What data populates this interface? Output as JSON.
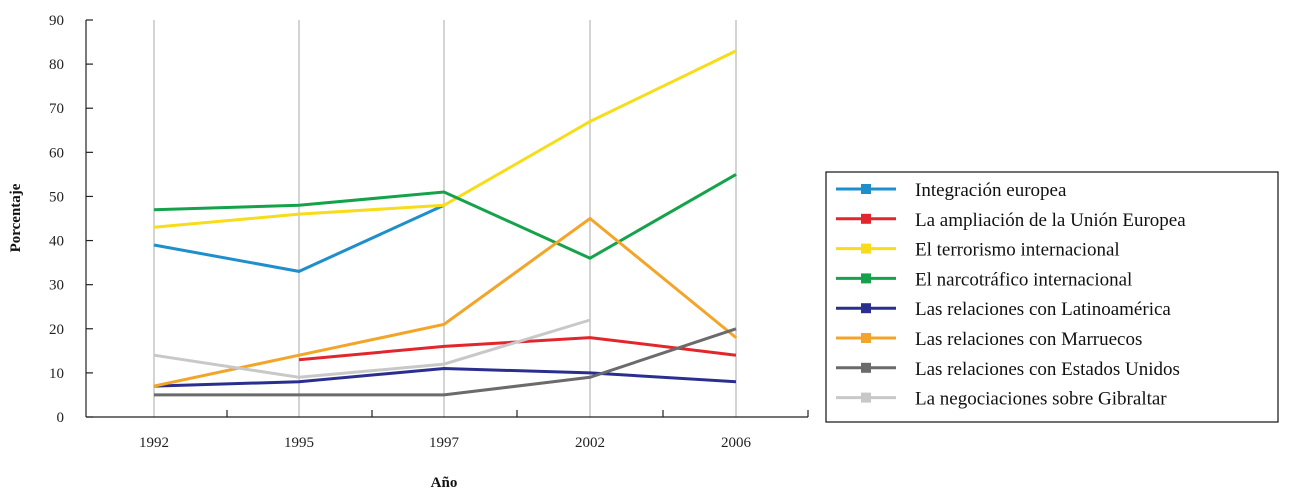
{
  "chart_data": {
    "type": "line",
    "title": "",
    "xlabel": "Año",
    "ylabel": "Porcentaje",
    "x": [
      "1992",
      "1995",
      "1997",
      "2002",
      "2006"
    ],
    "ylim": [
      0,
      90
    ],
    "yticks": [
      0,
      10,
      20,
      30,
      40,
      50,
      60,
      70,
      80,
      90
    ],
    "grid": "vertical",
    "legend_position": "right",
    "series": [
      {
        "name": "Integración europea",
        "color": "#1f8fcc",
        "values": [
          39,
          33,
          48,
          null,
          null
        ]
      },
      {
        "name": "La ampliación de la Unión Europea",
        "color": "#e3262b",
        "values": [
          null,
          13,
          16,
          18,
          14
        ]
      },
      {
        "name": "El terrorismo internacional",
        "color": "#f7dc1a",
        "values": [
          43,
          46,
          48,
          67,
          83
        ]
      },
      {
        "name": "El narcotráfico internacional",
        "color": "#14a24a",
        "values": [
          47,
          48,
          51,
          36,
          55
        ]
      },
      {
        "name": "Las relaciones con Latinoamérica",
        "color": "#2a2f8f",
        "values": [
          7,
          8,
          11,
          10,
          8
        ]
      },
      {
        "name": "Las relaciones con Marruecos",
        "color": "#f3a529",
        "values": [
          7,
          14,
          21,
          45,
          18
        ]
      },
      {
        "name": "Las relaciones con Estados Unidos",
        "color": "#6b6b6b",
        "values": [
          5,
          5,
          5,
          9,
          20
        ]
      },
      {
        "name": "La negociaciones sobre Gibraltar",
        "color": "#c8c8c8",
        "values": [
          14,
          9,
          12,
          22,
          null
        ]
      }
    ]
  }
}
